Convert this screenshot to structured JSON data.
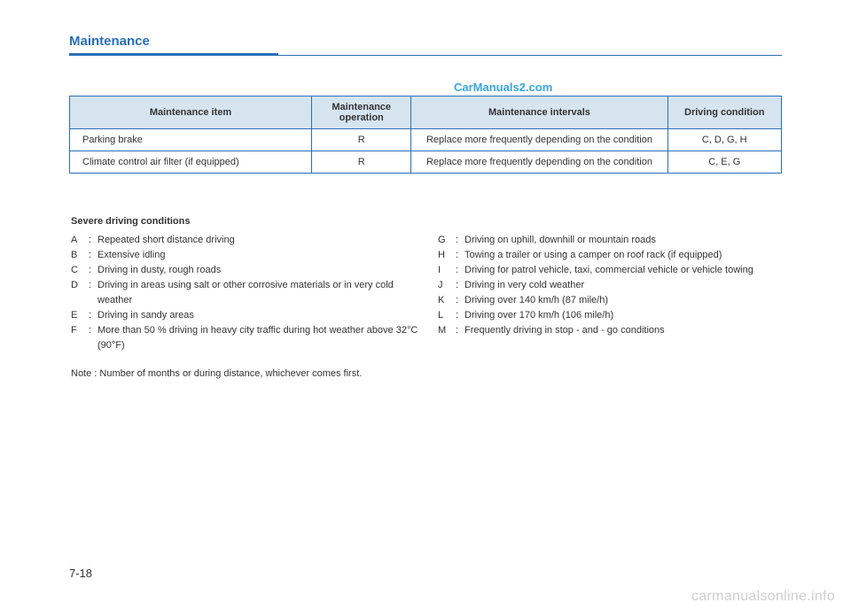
{
  "title": "Maintenance",
  "watermark_top": "CarManuals2.com",
  "watermark_bottom": "carmanualsonline.info",
  "page_number": "7-18",
  "table": {
    "headers": {
      "item": "Maintenance item",
      "operation": "Maintenance operation",
      "intervals": "Maintenance intervals",
      "condition": "Driving condition"
    },
    "rows": [
      {
        "item": "Parking brake",
        "operation": "R",
        "intervals": "Replace more frequently depending on the condition",
        "condition": "C, D, G, H"
      },
      {
        "item": "Climate control air filter (if equipped)",
        "operation": "R",
        "intervals": "Replace more frequently depending on the condition",
        "condition": "C, E, G"
      }
    ]
  },
  "subtitle": "Severe driving conditions",
  "conditions_left": [
    {
      "letter": "A",
      "text": "Repeated short distance driving"
    },
    {
      "letter": "B",
      "text": "Extensive idling"
    },
    {
      "letter": "C",
      "text": "Driving in dusty, rough roads"
    },
    {
      "letter": "D",
      "text": "Driving in areas using salt or other corrosive materials or in very cold weather"
    },
    {
      "letter": "E",
      "text": "Driving in sandy areas"
    },
    {
      "letter": "F",
      "text": "More than 50 % driving in heavy city traffic during hot weather above 32°C (90°F)"
    }
  ],
  "conditions_right": [
    {
      "letter": "G",
      "text": "Driving on uphill, downhill or mountain roads"
    },
    {
      "letter": "H",
      "text": "Towing a trailer or using a camper on roof rack (if equipped)"
    },
    {
      "letter": "I",
      "text": "Driving for patrol vehicle, taxi, commercial vehicle or vehicle towing"
    },
    {
      "letter": "J",
      "text": "Driving  in very cold weather"
    },
    {
      "letter": "K",
      "text": "Driving over 140 km/h (87 mile/h)"
    },
    {
      "letter": "L",
      "text": "Driving over 170 km/h (106 mile/h)"
    },
    {
      "letter": "M",
      "text": "Frequently driving in stop - and - go conditions"
    }
  ],
  "note": "Note : Number of months or during distance, whichever comes first."
}
